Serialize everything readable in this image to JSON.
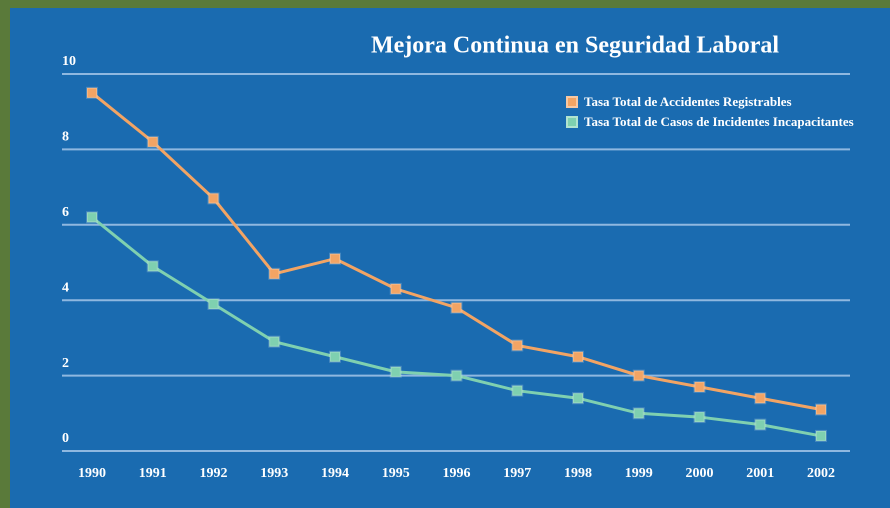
{
  "chart_data": {
    "type": "line",
    "title": "Mejora Continua en Seguridad Laboral",
    "categories": [
      "1990",
      "1991",
      "1992",
      "1993",
      "1994",
      "1995",
      "1996",
      "1997",
      "1998",
      "1999",
      "2000",
      "2001",
      "2002"
    ],
    "series": [
      {
        "name": "Tasa Total de Accidentes Registrables",
        "color": "#f2a464",
        "values": [
          9.5,
          8.2,
          6.7,
          4.7,
          5.1,
          4.3,
          3.8,
          2.8,
          2.5,
          2.0,
          1.7,
          1.4,
          1.1
        ]
      },
      {
        "name": "Tasa Total de Casos de Incidentes Incapacitantes",
        "color": "#7fd0b0",
        "values": [
          6.2,
          4.9,
          3.9,
          2.9,
          2.5,
          2.1,
          2.0,
          1.6,
          1.4,
          1.0,
          0.9,
          0.7,
          0.4
        ]
      }
    ],
    "ylim": [
      0,
      10
    ],
    "yticks": [
      0,
      2,
      4,
      6,
      8,
      10
    ],
    "grid": true
  }
}
